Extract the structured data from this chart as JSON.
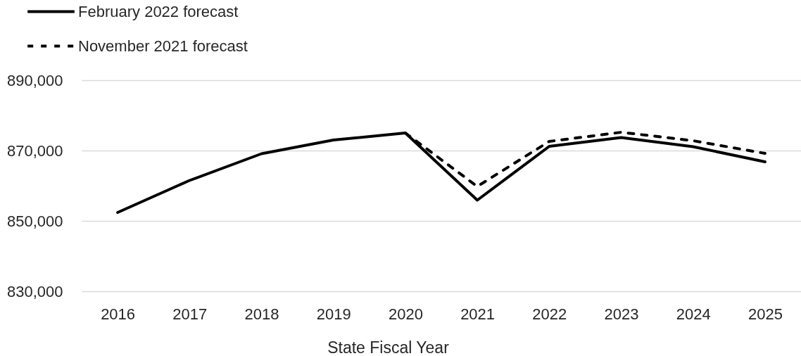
{
  "chart_data": {
    "type": "line",
    "xlabel": "State Fiscal Year",
    "categories": [
      "2016",
      "2017",
      "2018",
      "2019",
      "2020",
      "2021",
      "2022",
      "2023",
      "2024",
      "2025"
    ],
    "series": [
      {
        "name": "February 2022 forecast",
        "color": "#000000",
        "line_style": "solid",
        "values": [
          852400,
          861500,
          869100,
          873000,
          875000,
          855900,
          871200,
          873700,
          871100,
          866800
        ]
      },
      {
        "name": "November 2021 forecast",
        "color": "#000000",
        "line_style": "dashed",
        "values": [
          null,
          null,
          null,
          null,
          875000,
          859800,
          872600,
          875200,
          872800,
          869200
        ]
      }
    ],
    "ylim": [
      830000,
      890000
    ],
    "yticks": [
      {
        "value": 830000,
        "label": "830,000"
      },
      {
        "value": 850000,
        "label": "850,000"
      },
      {
        "value": 870000,
        "label": "870,000"
      },
      {
        "value": 890000,
        "label": "890,000"
      }
    ],
    "grid": "y",
    "legend": "top left"
  }
}
